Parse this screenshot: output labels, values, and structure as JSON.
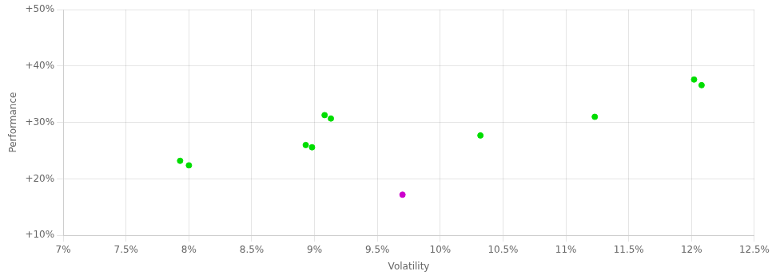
{
  "chart_data": {
    "type": "scatter",
    "xlabel": "Volatility",
    "ylabel": "Performance",
    "xlim": [
      0.07,
      0.125
    ],
    "ylim": [
      0.1,
      0.5
    ],
    "xticks": [
      {
        "value": 0.07,
        "label": "7%"
      },
      {
        "value": 0.075,
        "label": "7.5%"
      },
      {
        "value": 0.08,
        "label": "8%"
      },
      {
        "value": 0.085,
        "label": "8.5%"
      },
      {
        "value": 0.09,
        "label": "9%"
      },
      {
        "value": 0.095,
        "label": "9.5%"
      },
      {
        "value": 0.1,
        "label": "10%"
      },
      {
        "value": 0.105,
        "label": "10.5%"
      },
      {
        "value": 0.11,
        "label": "11%"
      },
      {
        "value": 0.115,
        "label": "11.5%"
      },
      {
        "value": 0.12,
        "label": "12%"
      },
      {
        "value": 0.125,
        "label": "12.5%"
      }
    ],
    "yticks": [
      {
        "value": 0.1,
        "label": "+10%"
      },
      {
        "value": 0.2,
        "label": "+20%"
      },
      {
        "value": 0.3,
        "label": "+30%"
      },
      {
        "value": 0.4,
        "label": "+40%"
      },
      {
        "value": 0.5,
        "label": "+50%"
      }
    ],
    "grid": true,
    "series": [
      {
        "color": "#00dd00",
        "x": [
          0.0793,
          0.08,
          0.0893,
          0.0898,
          0.0908,
          0.0913,
          0.1032,
          0.1123,
          0.1202,
          0.1208
        ],
        "values": [
          0.232,
          0.224,
          0.26,
          0.256,
          0.313,
          0.307,
          0.277,
          0.31,
          0.376,
          0.366
        ]
      },
      {
        "color": "#cc00cc",
        "x": [
          0.097
        ],
        "values": [
          0.172
        ]
      }
    ]
  }
}
